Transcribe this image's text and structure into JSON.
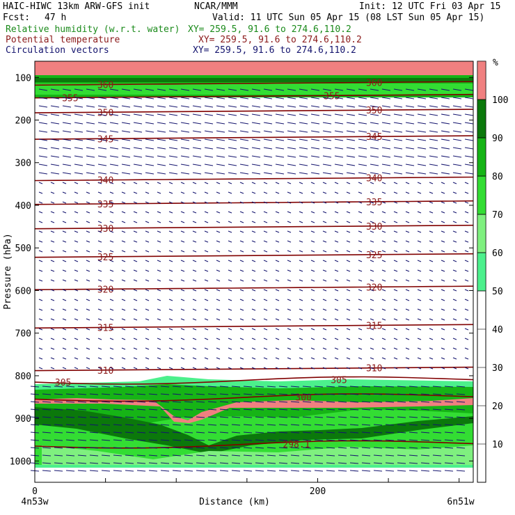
{
  "header": {
    "title_left": "HAIC-HIWC 13km ARW-GFS init",
    "org": "NCAR/MMM",
    "init": "Init: 12 UTC Fri 03 Apr 15",
    "fcst_label": "Fcst:",
    "fcst_value": "47 h",
    "valid": "Valid: 11 UTC Sun 05 Apr 15 (08 LST Sun 05 Apr 15)",
    "fields": [
      {
        "name": "Relative humidity (w.r.t. water)",
        "xy": "XY= 259.5, 91.6 to 274.6,110.2",
        "color": "#1a8a1a"
      },
      {
        "name": "Potential temperature",
        "xy": "XY= 259.5, 91.6 to 274.6,110.2",
        "color": "#8b1a1a"
      },
      {
        "name": "Circulation vectors",
        "xy": "XY= 259.5, 91.6 to 274.6,110.2",
        "color": "#14146e"
      }
    ]
  },
  "chart_data": {
    "type": "contour",
    "xlabel": "Distance (km)",
    "ylabel": "Pressure (hPa)",
    "xlim": [
      0,
      310
    ],
    "ylim": [
      1050,
      62
    ],
    "x_ticks": [
      0,
      200
    ],
    "y_ticks": [
      100,
      200,
      300,
      400,
      500,
      600,
      700,
      800,
      900,
      1000
    ],
    "x_endpoints": {
      "left": "4n53w",
      "right": "6n51w"
    },
    "colorbar": {
      "unit": "%",
      "labels": [
        10,
        20,
        30,
        40,
        50,
        60,
        70,
        80,
        90,
        100
      ],
      "bands": [
        {
          "from": 50,
          "to": 60,
          "color": "#4cf08c"
        },
        {
          "from": 60,
          "to": 70,
          "color": "#7ff07f"
        },
        {
          "from": 70,
          "to": 80,
          "color": "#33dd33"
        },
        {
          "from": 80,
          "to": 90,
          "color": "#16b416"
        },
        {
          "from": 90,
          "to": 100,
          "color": "#0b780b"
        },
        {
          "from": 100,
          "to": 110,
          "color": "#f08080"
        }
      ]
    },
    "theta_contours": [
      {
        "value": "360",
        "pressure": 118,
        "label_positions_km": [
          50,
          240
        ]
      },
      {
        "value": "355",
        "pressure": 148,
        "label_positions_km": [
          25,
          210
        ]
      },
      {
        "value": "350",
        "pressure": 183,
        "label_positions_km": [
          50,
          240
        ]
      },
      {
        "value": "345",
        "pressure": 245,
        "label_positions_km": [
          50,
          240
        ]
      },
      {
        "value": "340",
        "pressure": 342,
        "label_positions_km": [
          50,
          240
        ]
      },
      {
        "value": "335",
        "pressure": 398,
        "label_positions_km": [
          50,
          240
        ]
      },
      {
        "value": "330",
        "pressure": 455,
        "label_positions_km": [
          50,
          240
        ]
      },
      {
        "value": "325",
        "pressure": 522,
        "label_positions_km": [
          50,
          240
        ]
      },
      {
        "value": "320",
        "pressure": 598,
        "label_positions_km": [
          50,
          240
        ]
      },
      {
        "value": "315",
        "pressure": 688,
        "label_positions_km": [
          50,
          240
        ]
      },
      {
        "value": "310",
        "pressure": 788,
        "label_positions_km": [
          50,
          240
        ]
      },
      {
        "value": "305",
        "pressure": 815,
        "label_positions_km": [
          20,
          215
        ]
      },
      {
        "value": "300",
        "pressure": 855,
        "label_positions_km": [
          190
        ]
      },
      {
        "value": "298.1",
        "pressure": 965,
        "label_positions_km": [
          185
        ]
      }
    ]
  }
}
